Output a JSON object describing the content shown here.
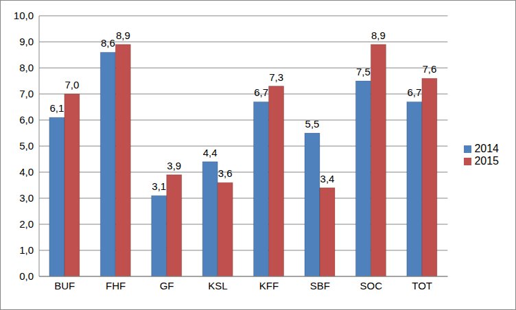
{
  "chart_data": {
    "type": "bar",
    "categories": [
      "BUF",
      "FHF",
      "GF",
      "KSL",
      "KFF",
      "SBF",
      "SOC",
      "TOT"
    ],
    "series": [
      {
        "name": "2014",
        "color": "#4f81bd",
        "values": [
          6.1,
          8.6,
          3.1,
          4.4,
          6.7,
          5.5,
          7.5,
          6.7
        ],
        "value_labels": [
          "6,1",
          "8,6",
          "3,1",
          "4,4",
          "6,7",
          "5,5",
          "7,5",
          "6,7"
        ]
      },
      {
        "name": "2015",
        "color": "#c0504d",
        "values": [
          7.0,
          8.9,
          3.9,
          3.6,
          7.3,
          3.4,
          8.9,
          7.6
        ],
        "value_labels": [
          "7,0",
          "8,9",
          "3,9",
          "3,6",
          "7,3",
          "3,4",
          "8,9",
          "7,6"
        ]
      }
    ],
    "ylim": [
      0,
      10
    ],
    "yticks": [
      {
        "value": 0,
        "label": "0,0"
      },
      {
        "value": 1,
        "label": "1,0"
      },
      {
        "value": 2,
        "label": "2,0"
      },
      {
        "value": 3,
        "label": "3,0"
      },
      {
        "value": 4,
        "label": "4,0"
      },
      {
        "value": 5,
        "label": "5,0"
      },
      {
        "value": 6,
        "label": "6,0"
      },
      {
        "value": 7,
        "label": "7,0"
      },
      {
        "value": 8,
        "label": "8,0"
      },
      {
        "value": 9,
        "label": "9,0"
      },
      {
        "value": 10,
        "label": "10,0"
      }
    ],
    "grid": true,
    "legend": "right",
    "data_labels": true
  }
}
